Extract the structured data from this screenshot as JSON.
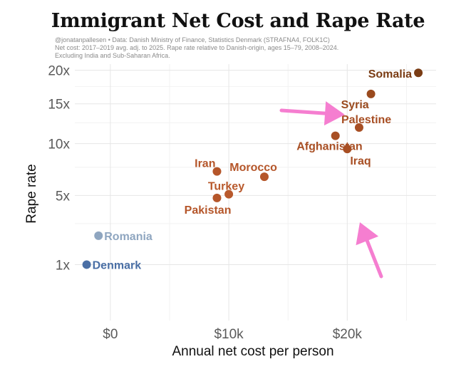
{
  "title": "Immigrant Net Cost and Rape Rate",
  "subtitle_lines": [
    "@jonatanpallesen • Data: Danish Ministry of Finance, Statistics Denmark (STRAFNA4, FOLK1C)",
    "Net cost: 2017–2019 avg. adj. to 2025. Rape rate relative to Danish-origin, ages 15–79, 2008–2024.",
    "Excluding India and Sub-Saharan Africa."
  ],
  "chart_data": {
    "type": "scatter",
    "title": "Immigrant Net Cost and Rape Rate",
    "xlabel": "Annual net cost per person",
    "ylabel": "Rape rate",
    "xlim": [
      -3000,
      27500
    ],
    "ylim": [
      0,
      21
    ],
    "y_scale": "sqrt",
    "x_ticks": [
      {
        "value": 0,
        "label": "$0"
      },
      {
        "value": 10000,
        "label": "$10k"
      },
      {
        "value": 20000,
        "label": "$20k"
      }
    ],
    "y_ticks": [
      {
        "value": 1,
        "label": "1x"
      },
      {
        "value": 5,
        "label": "5x"
      },
      {
        "value": 10,
        "label": "10x"
      },
      {
        "value": 15,
        "label": "15x"
      },
      {
        "value": 20,
        "label": "20x"
      }
    ],
    "grid": true,
    "points": [
      {
        "label": "Denmark",
        "x": -2000,
        "y": 1.0,
        "color": "#4a6fa5"
      },
      {
        "label": "Romania",
        "x": -1000,
        "y": 2.3,
        "color": "#8fa6c0"
      },
      {
        "label": "Pakistan",
        "x": 9000,
        "y": 4.8,
        "color": "#b5562a"
      },
      {
        "label": "Turkey",
        "x": 10000,
        "y": 5.1,
        "color": "#b8592c"
      },
      {
        "label": "Iran",
        "x": 9000,
        "y": 7.1,
        "color": "#b5562a"
      },
      {
        "label": "Morocco",
        "x": 13000,
        "y": 6.6,
        "color": "#b5562a"
      },
      {
        "label": "Afghanistan",
        "x": 19000,
        "y": 10.9,
        "color": "#a84f24"
      },
      {
        "label": "Iraq",
        "x": 20000,
        "y": 9.4,
        "color": "#a84f24"
      },
      {
        "label": "Palestine",
        "x": 21000,
        "y": 11.9,
        "color": "#a84f24"
      },
      {
        "label": "Syria",
        "x": 22000,
        "y": 16.4,
        "color": "#9a4a1e"
      },
      {
        "label": "Somalia",
        "x": 26000,
        "y": 19.6,
        "color": "#7a3c14"
      }
    ],
    "annotations": [
      {
        "type": "arrow",
        "points_to": "Syria",
        "color": "#f57ed0"
      },
      {
        "type": "arrow",
        "points_to": "Iraq",
        "color": "#f57ed0"
      }
    ]
  }
}
